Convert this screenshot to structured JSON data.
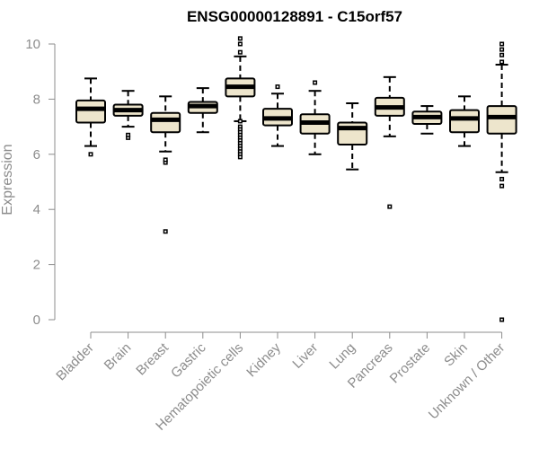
{
  "chart_data": {
    "type": "boxplot",
    "title": "ENSG00000128891 - C15orf57",
    "xlabel": "",
    "ylabel": "Expression",
    "ylim": [
      0,
      10
    ],
    "yticks": [
      0,
      2,
      4,
      6,
      8,
      10
    ],
    "grid": false,
    "legend": "none",
    "colors": {
      "box_fill": "#ede5cc",
      "box_stroke": "#000000",
      "axis": "#8c8c8c",
      "text": "#8c8c8c",
      "title": "#000000"
    },
    "categories": [
      "Bladder",
      "Brain",
      "Breast",
      "Gastric",
      "Hematopoietic cells",
      "Kidney",
      "Liver",
      "Lung",
      "Pancreas",
      "Prostate",
      "Skin",
      "Unknown / Other"
    ],
    "boxes": [
      {
        "category": "Bladder",
        "whisker_low": 6.3,
        "q1": 7.15,
        "median": 7.65,
        "q3": 7.95,
        "whisker_high": 8.75,
        "outliers": [
          6.0
        ]
      },
      {
        "category": "Brain",
        "whisker_low": 7.0,
        "q1": 7.4,
        "median": 7.6,
        "q3": 7.8,
        "whisker_high": 8.3,
        "outliers": [
          6.6,
          6.7
        ]
      },
      {
        "category": "Breast",
        "whisker_low": 6.1,
        "q1": 6.8,
        "median": 7.25,
        "q3": 7.5,
        "whisker_high": 8.1,
        "outliers": [
          5.7,
          5.8,
          3.2
        ]
      },
      {
        "category": "Gastric",
        "whisker_low": 6.8,
        "q1": 7.5,
        "median": 7.75,
        "q3": 7.9,
        "whisker_high": 8.4,
        "outliers": []
      },
      {
        "category": "Hematopoietic cells",
        "whisker_low": 7.2,
        "q1": 8.1,
        "median": 8.45,
        "q3": 8.75,
        "whisker_high": 9.55,
        "outliers": [
          10.2,
          10.0,
          9.7,
          7.2,
          7.0,
          6.9,
          6.8,
          6.7,
          6.6,
          6.5,
          6.4,
          6.3,
          6.2,
          6.1,
          6.0,
          5.9
        ]
      },
      {
        "category": "Kidney",
        "whisker_low": 6.3,
        "q1": 7.05,
        "median": 7.3,
        "q3": 7.65,
        "whisker_high": 8.2,
        "outliers": [
          8.45
        ]
      },
      {
        "category": "Liver",
        "whisker_low": 6.0,
        "q1": 6.75,
        "median": 7.15,
        "q3": 7.45,
        "whisker_high": 8.3,
        "outliers": [
          8.6
        ]
      },
      {
        "category": "Lung",
        "whisker_low": 5.45,
        "q1": 6.35,
        "median": 6.95,
        "q3": 7.15,
        "whisker_high": 7.85,
        "outliers": []
      },
      {
        "category": "Pancreas",
        "whisker_low": 6.65,
        "q1": 7.4,
        "median": 7.7,
        "q3": 8.05,
        "whisker_high": 8.8,
        "outliers": [
          4.1
        ]
      },
      {
        "category": "Prostate",
        "whisker_low": 6.75,
        "q1": 7.1,
        "median": 7.35,
        "q3": 7.55,
        "whisker_high": 7.75,
        "outliers": []
      },
      {
        "category": "Skin",
        "whisker_low": 6.3,
        "q1": 6.8,
        "median": 7.3,
        "q3": 7.6,
        "whisker_high": 8.1,
        "outliers": []
      },
      {
        "category": "Unknown / Other",
        "whisker_low": 5.35,
        "q1": 6.75,
        "median": 7.35,
        "q3": 7.75,
        "whisker_high": 9.25,
        "outliers": [
          10.0,
          9.8,
          9.6,
          9.35,
          5.1,
          4.85,
          0.0
        ]
      }
    ]
  }
}
